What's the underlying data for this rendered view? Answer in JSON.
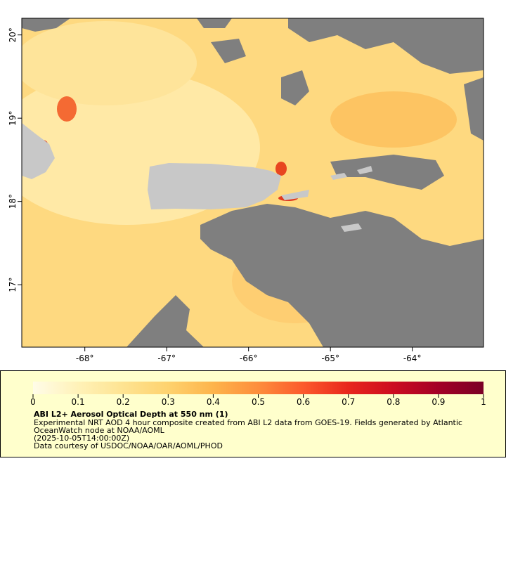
{
  "chart_data": {
    "type": "map",
    "xlim": [
      -68.77,
      -63.13
    ],
    "ylim": [
      16.25,
      20.2
    ],
    "xticks": [
      {
        "value": -68,
        "label": "-68°"
      },
      {
        "value": -67,
        "label": "-67°"
      },
      {
        "value": -66,
        "label": "-66°"
      },
      {
        "value": -65,
        "label": "-65°"
      },
      {
        "value": -64,
        "label": "-64°"
      }
    ],
    "yticks": [
      {
        "value": 17,
        "label": "17°"
      },
      {
        "value": 18,
        "label": "18°"
      },
      {
        "value": 19,
        "label": "19°"
      },
      {
        "value": 20,
        "label": "20°"
      }
    ],
    "colorbar": {
      "lim": [
        0,
        1
      ],
      "ticks": [
        0,
        0.1,
        0.2,
        0.3,
        0.4,
        0.5,
        0.6,
        0.7,
        0.8,
        0.9,
        1
      ],
      "colors": [
        "#fffce8",
        "#fff2b8",
        "#fee391",
        "#fed26e",
        "#fdb44b",
        "#fd8d3c",
        "#fc5a2c",
        "#e8261c",
        "#cc0c20",
        "#a30026",
        "#7a0026"
      ]
    },
    "caption": {
      "title": "ABI L2+ Aerosol Optical Depth at 550 nm (1)",
      "lines": [
        "Experimental NRT AOD 4 hour composite created from ABI L2 data from GOES-19. Fields generated by Atlantic",
        "OceanWatch node at NOAA/AOML",
        "(2025-10-05T14:00:00Z)",
        "Data courtesy of USDOC/NOAA/OAR/AOML/PHOD"
      ]
    }
  }
}
